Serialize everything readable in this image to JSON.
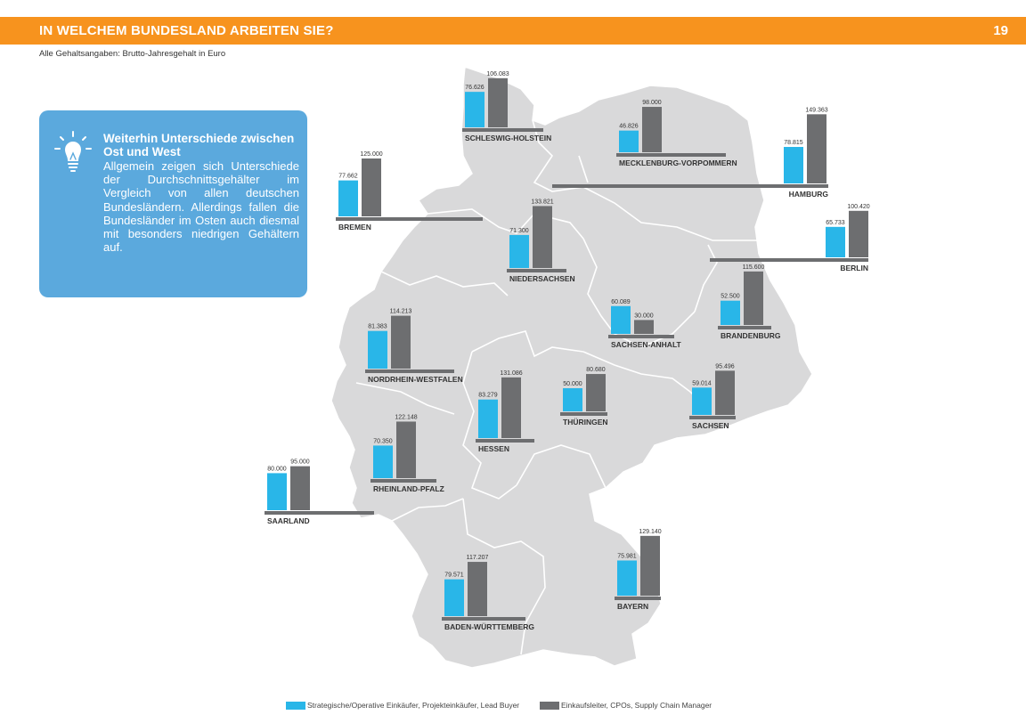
{
  "header": {
    "title": "IN WELCHEM BUNDESLAND ARBEITEN SIE?",
    "page": "19"
  },
  "subtitle": "Alle Gehaltsangaben: Brutto-Jahresgehalt in Euro",
  "infobox": {
    "title": "Weiterhin Unterschiede zwischen Ost und West",
    "text": "Allgemein zeigen sich Unter­schiede der Durchschnittsge­hälter im Vergleich von allen deutschen Bundesländern. Al­lerdings fallen die Bundeslän­der im Osten auch diesmal mit besonders niedrigen Gehältern auf.",
    "icon": "lightbulb-icon"
  },
  "colors": {
    "header": "#f7931e",
    "series1": "#29b6e8",
    "series2": "#6d6e70",
    "map": "#d9d9da",
    "infobox": "#5ba9dd"
  },
  "legend": {
    "series1": "Strategische/Operative Einkäufer, Projekteinkäufer, Lead Buyer",
    "series2": "Einkaufsleiter, CPOs, Supply Chain Manager"
  },
  "chart_data": {
    "type": "bar",
    "series": [
      {
        "name": "Strategische/Operative Einkäufer, Projekteinkäufer, Lead Buyer"
      },
      {
        "name": "Einkaufsleiter, CPOs, Supply Chain Manager"
      }
    ],
    "states": [
      {
        "name": "SCHLESWIG-HOLSTEIN",
        "v1": 76626,
        "v1_label": "76.626",
        "v2": 106083,
        "v2_label": "106.083"
      },
      {
        "name": "MECKLENBURG-VORPOMMERN",
        "v1": 46826,
        "v1_label": "46.826",
        "v2": 98000,
        "v2_label": "98.000"
      },
      {
        "name": "HAMBURG",
        "v1": 78815,
        "v1_label": "78.815",
        "v2": 149363,
        "v2_label": "149.363"
      },
      {
        "name": "BREMEN",
        "v1": 77662,
        "v1_label": "77.662",
        "v2": 125000,
        "v2_label": "125.000"
      },
      {
        "name": "NIEDERSACHSEN",
        "v1": 71300,
        "v1_label": "71.300",
        "v2": 133821,
        "v2_label": "133.821"
      },
      {
        "name": "BERLIN",
        "v1": 65733,
        "v1_label": "65.733",
        "v2": 100420,
        "v2_label": "100.420"
      },
      {
        "name": "BRANDENBURG",
        "v1": 52500,
        "v1_label": "52.500",
        "v2": 115600,
        "v2_label": "115.600"
      },
      {
        "name": "SACHSEN-ANHALT",
        "v1": 60089,
        "v1_label": "60.089",
        "v2": 30000,
        "v2_label": "30.000"
      },
      {
        "name": "NORDRHEIN-WESTFALEN",
        "v1": 81383,
        "v1_label": "81.383",
        "v2": 114213,
        "v2_label": "114.213"
      },
      {
        "name": "HESSEN",
        "v1": 83279,
        "v1_label": "83.279",
        "v2": 131086,
        "v2_label": "131.086"
      },
      {
        "name": "THÜRINGEN",
        "v1": 50000,
        "v1_label": "50.000",
        "v2": 80680,
        "v2_label": "80.680"
      },
      {
        "name": "SACHSEN",
        "v1": 59014,
        "v1_label": "59.014",
        "v2": 95496,
        "v2_label": "95.496"
      },
      {
        "name": "RHEINLAND-PFALZ",
        "v1": 70350,
        "v1_label": "70.350",
        "v2": 122148,
        "v2_label": "122.148"
      },
      {
        "name": "SAARLAND",
        "v1": 80000,
        "v1_label": "80.000",
        "v2": 95000,
        "v2_label": "95.000"
      },
      {
        "name": "BADEN-WÜRTTEMBERG",
        "v1": 79571,
        "v1_label": "79.571",
        "v2": 117207,
        "v2_label": "117.207"
      },
      {
        "name": "BAYERN",
        "v1": 75981,
        "v1_label": "75.981",
        "v2": 129140,
        "v2_label": "129.140"
      }
    ]
  }
}
